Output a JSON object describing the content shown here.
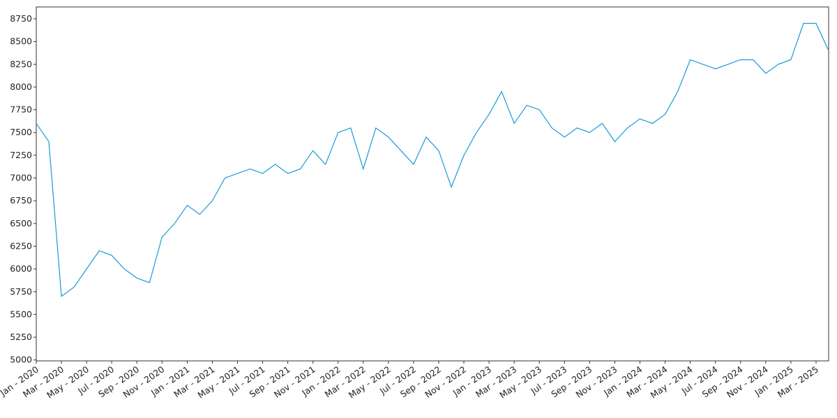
{
  "chart_data": {
    "type": "line",
    "x": [
      "2020-01",
      "2020-02",
      "2020-03",
      "2020-04",
      "2020-05",
      "2020-06",
      "2020-07",
      "2020-08",
      "2020-09",
      "2020-10",
      "2020-11",
      "2020-12",
      "2021-01",
      "2021-02",
      "2021-03",
      "2021-04",
      "2021-05",
      "2021-06",
      "2021-07",
      "2021-08",
      "2021-09",
      "2021-10",
      "2021-11",
      "2021-12",
      "2022-01",
      "2022-02",
      "2022-03",
      "2022-04",
      "2022-05",
      "2022-06",
      "2022-07",
      "2022-08",
      "2022-09",
      "2022-10",
      "2022-11",
      "2022-12",
      "2023-01",
      "2023-02",
      "2023-03",
      "2023-04",
      "2023-05",
      "2023-06",
      "2023-07",
      "2023-08",
      "2023-09",
      "2023-10",
      "2023-11",
      "2023-12",
      "2024-01",
      "2024-02",
      "2024-03",
      "2024-04",
      "2024-05",
      "2024-06",
      "2024-07",
      "2024-08",
      "2024-09",
      "2024-10",
      "2024-11",
      "2024-12",
      "2025-01",
      "2025-02",
      "2025-03",
      "2025-04"
    ],
    "series": [
      {
        "color": "#1a9ad6",
        "values": [
          7600,
          7400,
          5700,
          5800,
          6000,
          6200,
          6150,
          6000,
          5900,
          5850,
          6350,
          6500,
          6700,
          6600,
          6750,
          7000,
          7050,
          7100,
          7050,
          7150,
          7050,
          7100,
          7300,
          7150,
          7500,
          7550,
          7100,
          7550,
          7450,
          7300,
          7150,
          7450,
          7300,
          6900,
          7250,
          7500,
          7700,
          7950,
          7600,
          7800,
          7750,
          7550,
          7450,
          7550,
          7500,
          7600,
          7400,
          7550,
          7650,
          7600,
          7700,
          7950,
          8300,
          8250,
          8200,
          8250,
          8300,
          8300,
          8150,
          8250,
          8300,
          8700,
          8700,
          8400
        ]
      }
    ],
    "xlim": [
      "2020-01",
      "2025-04"
    ],
    "xticks": [
      {
        "value": "2020-01",
        "label": "Jan - 2020"
      },
      {
        "value": "2020-03",
        "label": "Mar - 2020"
      },
      {
        "value": "2020-05",
        "label": "May - 2020"
      },
      {
        "value": "2020-07",
        "label": "Jul - 2020"
      },
      {
        "value": "2020-09",
        "label": "Sep - 2020"
      },
      {
        "value": "2020-11",
        "label": "Nov - 2020"
      },
      {
        "value": "2021-01",
        "label": "Jan - 2021"
      },
      {
        "value": "2021-03",
        "label": "Mar - 2021"
      },
      {
        "value": "2021-05",
        "label": "May - 2021"
      },
      {
        "value": "2021-07",
        "label": "Jul - 2021"
      },
      {
        "value": "2021-09",
        "label": "Sep - 2021"
      },
      {
        "value": "2021-11",
        "label": "Nov - 2021"
      },
      {
        "value": "2022-01",
        "label": "Jan - 2022"
      },
      {
        "value": "2022-03",
        "label": "Mar - 2022"
      },
      {
        "value": "2022-05",
        "label": "May - 2022"
      },
      {
        "value": "2022-07",
        "label": "Jul - 2022"
      },
      {
        "value": "2022-09",
        "label": "Sep - 2022"
      },
      {
        "value": "2022-11",
        "label": "Nov - 2022"
      },
      {
        "value": "2023-01",
        "label": "Jan - 2023"
      },
      {
        "value": "2023-03",
        "label": "Mar - 2023"
      },
      {
        "value": "2023-05",
        "label": "May - 2023"
      },
      {
        "value": "2023-07",
        "label": "Jul - 2023"
      },
      {
        "value": "2023-09",
        "label": "Sep - 2023"
      },
      {
        "value": "2023-11",
        "label": "Nov - 2023"
      },
      {
        "value": "2024-01",
        "label": "Jan - 2024"
      },
      {
        "value": "2024-03",
        "label": "Mar - 2024"
      },
      {
        "value": "2024-05",
        "label": "May - 2024"
      },
      {
        "value": "2024-07",
        "label": "Jul - 2024"
      },
      {
        "value": "2024-09",
        "label": "Sep - 2024"
      },
      {
        "value": "2024-11",
        "label": "Nov - 2024"
      },
      {
        "value": "2025-01",
        "label": "Jan - 2025"
      },
      {
        "value": "2025-03",
        "label": "Mar - 2025"
      }
    ],
    "ylim": [
      4990,
      8880
    ],
    "yticks": [
      5000,
      5250,
      5500,
      5750,
      6000,
      6250,
      6500,
      6750,
      7000,
      7250,
      7500,
      7750,
      8000,
      8250,
      8500,
      8750
    ],
    "grid": false
  }
}
